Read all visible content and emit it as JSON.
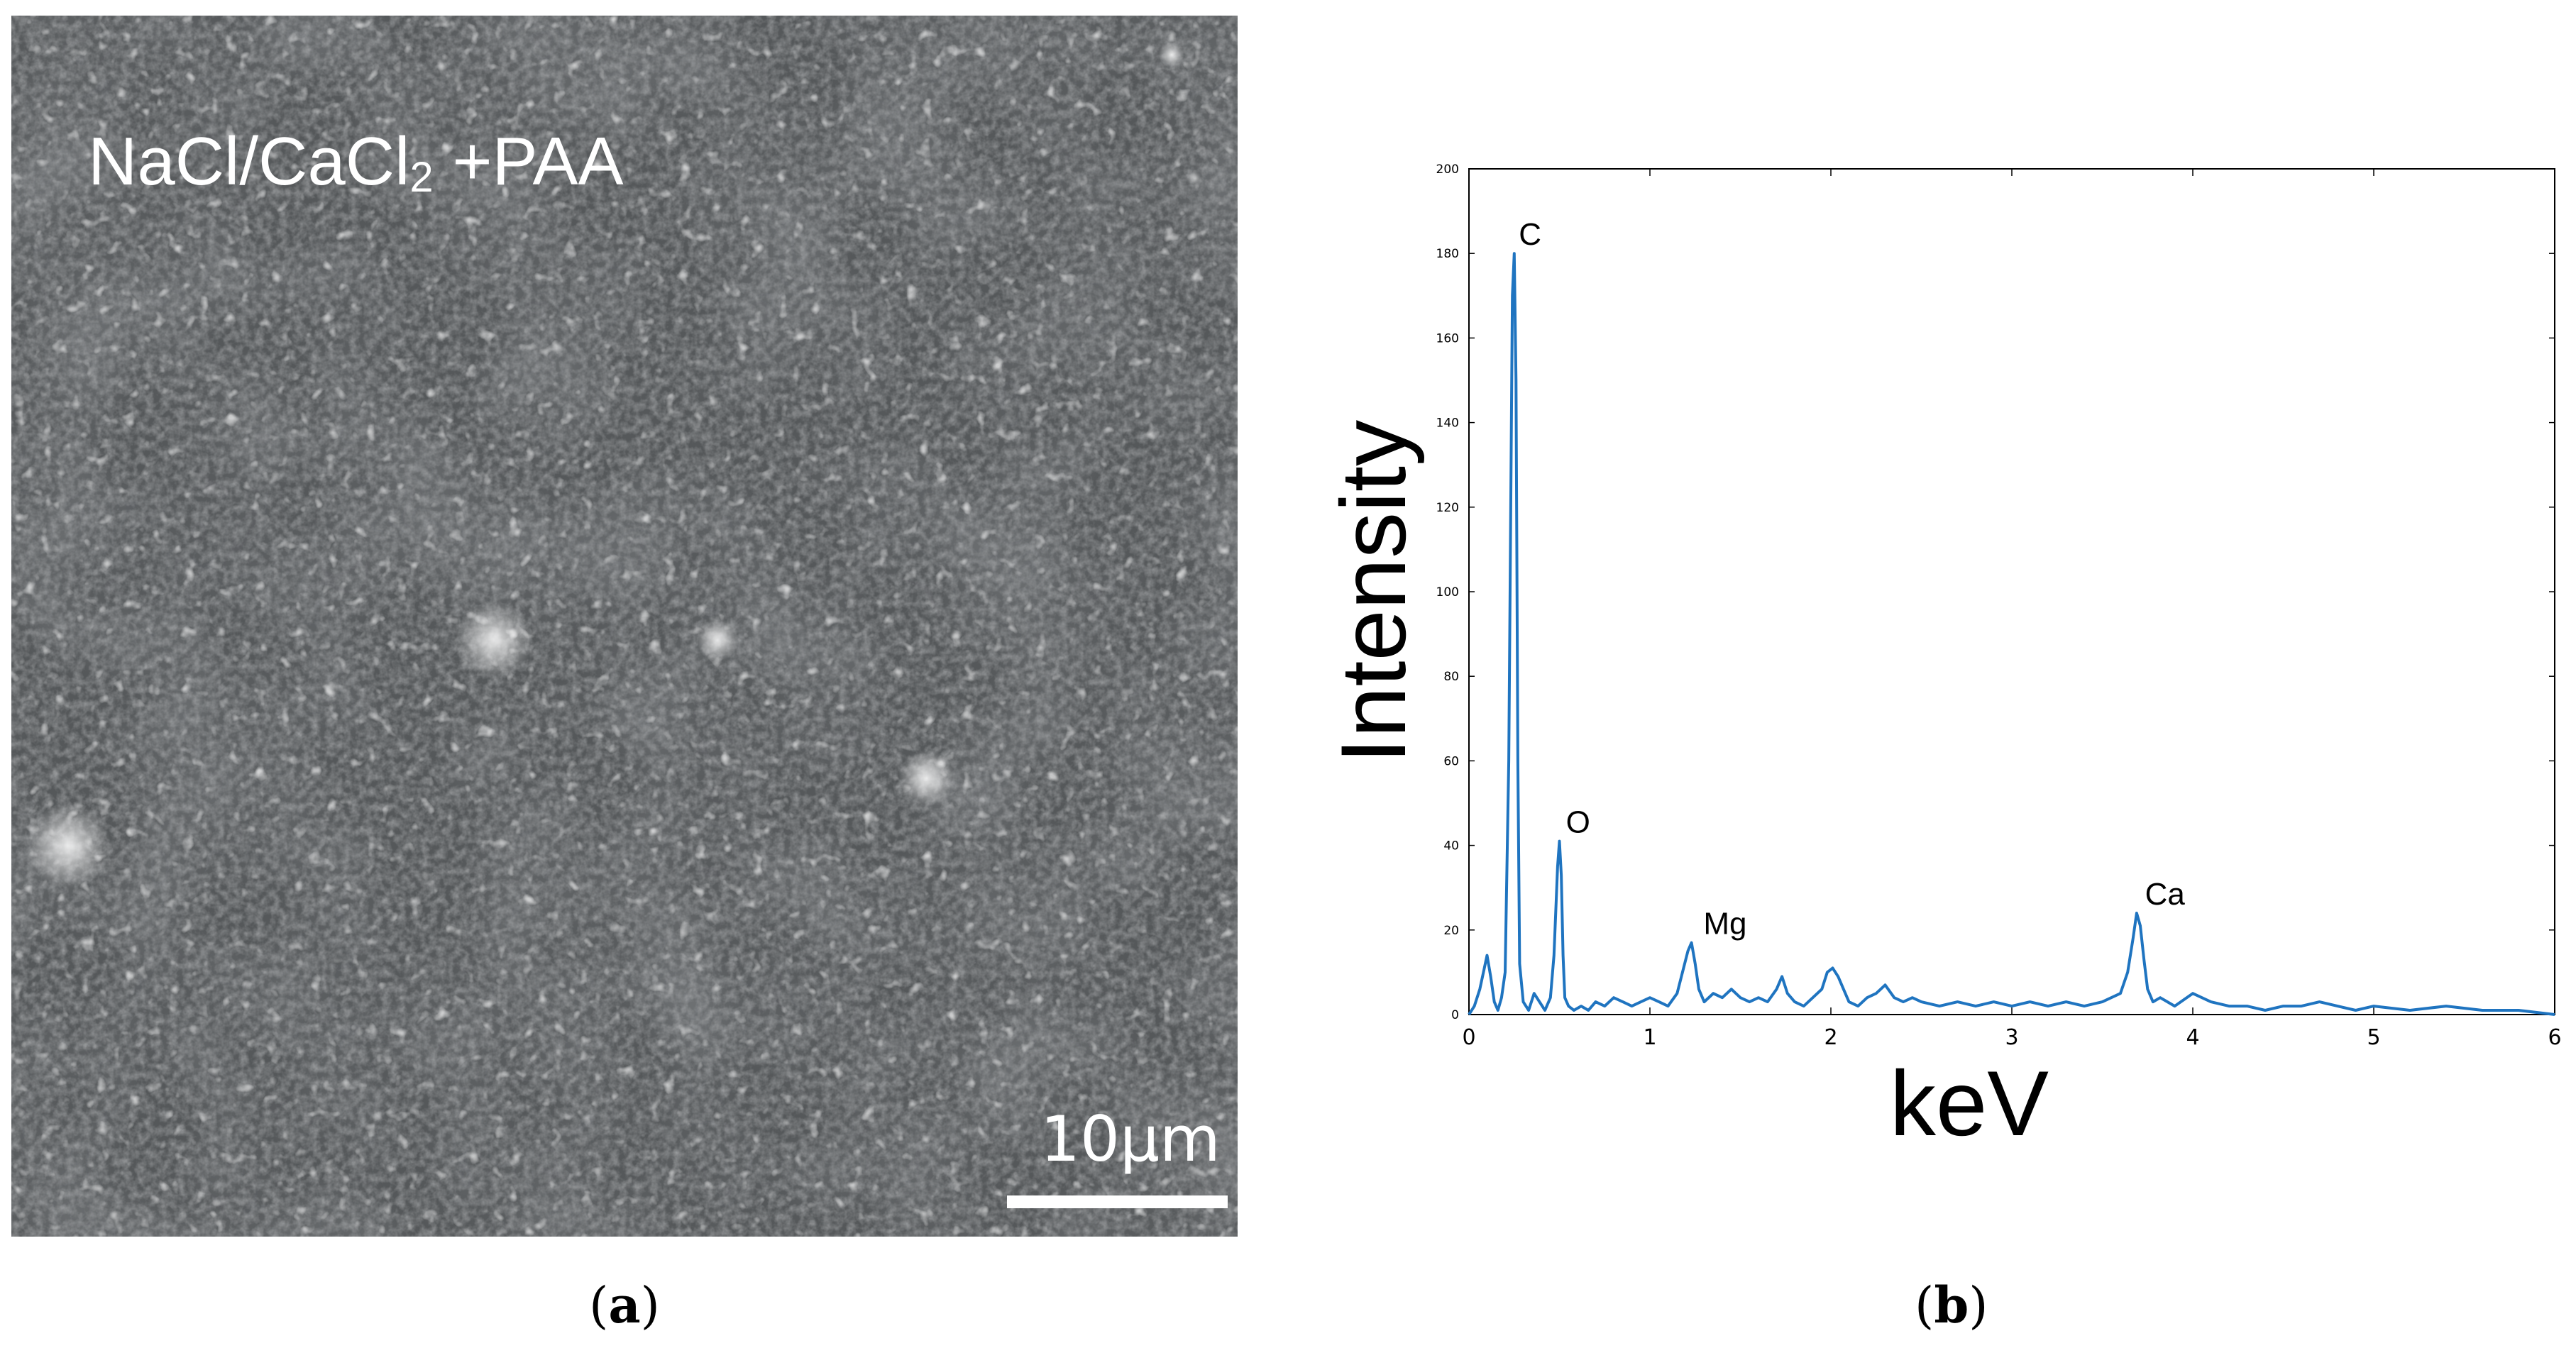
{
  "panel_a": {
    "label_main": "NaCl/CaCl",
    "label_sub": "2",
    "label_suffix": " +PAA",
    "scale_bar_text": "10µm",
    "caption_letter": "a"
  },
  "panel_b": {
    "caption_letter": "b"
  },
  "colors": {
    "series": "#1f74c0",
    "sem_background": "#55585a"
  },
  "chart_data": {
    "type": "line",
    "title": "",
    "xlabel": "keV",
    "ylabel": "Intensity",
    "xlim": [
      0,
      6
    ],
    "ylim": [
      0,
      200
    ],
    "x_ticks": [
      "0",
      "1",
      "2",
      "3",
      "4",
      "5",
      "6"
    ],
    "y_ticks": [
      "0",
      "20",
      "40",
      "60",
      "80",
      "100",
      "120",
      "140",
      "160",
      "180",
      "200"
    ],
    "series": [
      {
        "x": [
          0.0,
          0.03,
          0.06,
          0.08,
          0.1,
          0.12,
          0.14,
          0.16,
          0.18,
          0.2,
          0.22,
          0.24,
          0.25,
          0.26,
          0.27,
          0.28,
          0.3,
          0.33,
          0.36,
          0.39,
          0.42,
          0.45,
          0.47,
          0.49,
          0.5,
          0.51,
          0.52,
          0.53,
          0.55,
          0.58,
          0.62,
          0.66,
          0.7,
          0.75,
          0.8,
          0.85,
          0.9,
          0.95,
          1.0,
          1.05,
          1.1,
          1.15,
          1.18,
          1.21,
          1.23,
          1.25,
          1.27,
          1.3,
          1.35,
          1.4,
          1.45,
          1.5,
          1.55,
          1.6,
          1.65,
          1.7,
          1.73,
          1.76,
          1.8,
          1.85,
          1.9,
          1.95,
          1.98,
          2.01,
          2.04,
          2.07,
          2.1,
          2.15,
          2.2,
          2.25,
          2.3,
          2.35,
          2.4,
          2.45,
          2.5,
          2.6,
          2.7,
          2.8,
          2.9,
          3.0,
          3.1,
          3.2,
          3.3,
          3.4,
          3.5,
          3.6,
          3.64,
          3.67,
          3.69,
          3.71,
          3.73,
          3.75,
          3.78,
          3.82,
          3.9,
          4.0,
          4.1,
          4.2,
          4.3,
          4.4,
          4.5,
          4.6,
          4.7,
          4.8,
          4.9,
          5.0,
          5.2,
          5.4,
          5.6,
          5.8,
          6.0
        ],
        "y": [
          0,
          2,
          6,
          10,
          14,
          9,
          3,
          1,
          4,
          10,
          60,
          170,
          180,
          150,
          60,
          12,
          3,
          1,
          5,
          3,
          1,
          4,
          14,
          35,
          41,
          33,
          14,
          4,
          2,
          1,
          2,
          1,
          3,
          2,
          4,
          3,
          2,
          3,
          4,
          3,
          2,
          5,
          10,
          15,
          17,
          12,
          6,
          3,
          5,
          4,
          6,
          4,
          3,
          4,
          3,
          6,
          9,
          5,
          3,
          2,
          4,
          6,
          10,
          11,
          9,
          6,
          3,
          2,
          4,
          5,
          7,
          4,
          3,
          4,
          3,
          2,
          3,
          2,
          3,
          2,
          3,
          2,
          3,
          2,
          3,
          5,
          10,
          18,
          24,
          21,
          13,
          6,
          3,
          4,
          2,
          5,
          3,
          2,
          2,
          1,
          2,
          2,
          3,
          2,
          1,
          2,
          1,
          2,
          1,
          1,
          0
        ]
      }
    ],
    "annotations": [
      {
        "text": "C",
        "x": 0.26,
        "y": 180
      },
      {
        "text": "O",
        "x": 0.52,
        "y": 41
      },
      {
        "text": "Mg",
        "x": 1.28,
        "y": 17
      },
      {
        "text": "Ca",
        "x": 3.72,
        "y": 24
      }
    ],
    "grid": false,
    "legend": "none"
  }
}
